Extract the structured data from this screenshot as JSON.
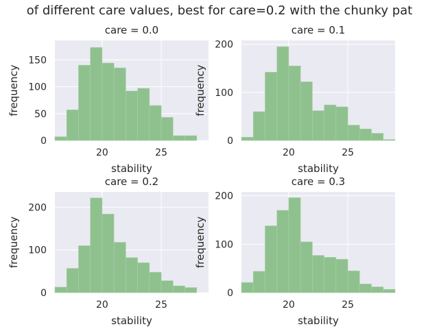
{
  "figure_title": "of different care values, best for care=0.2 with the chunky pat",
  "colors": {
    "axes_bg": "#eaeaf2",
    "grid": "#ffffff",
    "bar": "#8fc18f",
    "bar_edge": "#a9d0a9",
    "text": "#262626"
  },
  "chart_data": [
    {
      "type": "bar",
      "title": "care = 0.0",
      "xlabel": "stability",
      "ylabel": "frequency",
      "xlim": [
        16,
        29
      ],
      "ylim": [
        0,
        186
      ],
      "xticks": [
        20,
        25
      ],
      "yticks": [
        0,
        50,
        100,
        150
      ],
      "bin_edges": [
        16,
        17,
        18,
        19,
        20,
        21,
        22,
        23,
        24,
        25,
        26,
        27
      ],
      "values": [
        7,
        57,
        140,
        173,
        144,
        135,
        92,
        97,
        65,
        43,
        9,
        9
      ],
      "grid": true
    },
    {
      "type": "bar",
      "title": "care = 0.1",
      "xlabel": "stability",
      "ylabel": "frequency",
      "xlim": [
        16,
        29
      ],
      "ylim": [
        0,
        208
      ],
      "xticks": [
        20,
        25
      ],
      "yticks": [
        0,
        100,
        200
      ],
      "bin_edges": [
        16,
        17,
        18,
        19,
        20,
        21,
        22,
        23,
        24,
        25,
        26,
        27,
        28
      ],
      "values": [
        7,
        60,
        142,
        195,
        155,
        122,
        62,
        74,
        70,
        32,
        24,
        15,
        2
      ],
      "grid": true
    },
    {
      "type": "bar",
      "title": "care = 0.2",
      "xlabel": "stability",
      "ylabel": "frequency",
      "xlim": [
        16,
        29
      ],
      "ylim": [
        0,
        236
      ],
      "xticks": [
        20,
        25
      ],
      "yticks": [
        0,
        100,
        200
      ],
      "bin_edges": [
        16,
        17,
        18,
        19,
        20,
        21,
        22,
        23,
        24,
        25,
        26,
        27
      ],
      "values": [
        13,
        57,
        110,
        222,
        184,
        118,
        82,
        70,
        48,
        28,
        16,
        12
      ],
      "grid": true
    },
    {
      "type": "bar",
      "title": "care = 0.3",
      "xlabel": "stability",
      "ylabel": "frequency",
      "xlim": [
        16,
        29
      ],
      "ylim": [
        0,
        208
      ],
      "xticks": [
        20,
        25
      ],
      "yticks": [
        0,
        100,
        200
      ],
      "bin_edges": [
        16,
        17,
        18,
        19,
        20,
        21,
        22,
        23,
        24,
        25,
        26,
        27,
        28
      ],
      "values": [
        21,
        44,
        138,
        170,
        196,
        105,
        77,
        73,
        69,
        45,
        18,
        12,
        7
      ],
      "grid": true
    }
  ]
}
